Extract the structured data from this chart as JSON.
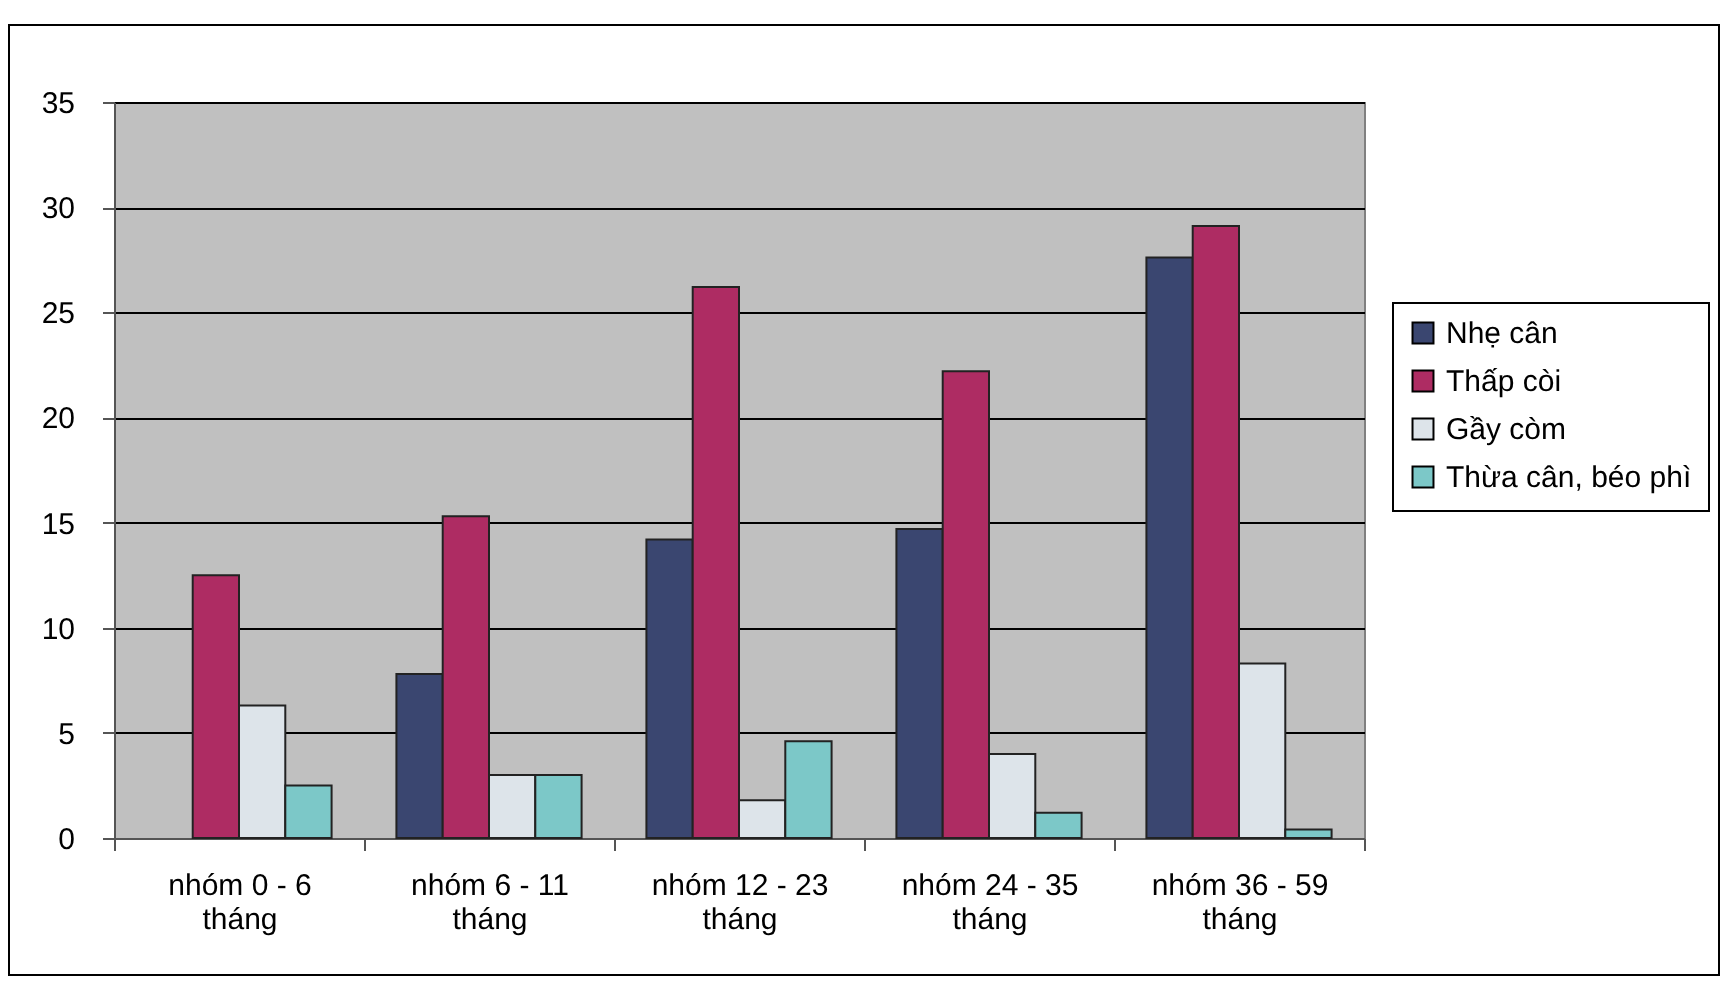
{
  "chart_data": {
    "type": "bar",
    "categories": [
      "nhóm 0 - 6 tháng",
      "nhóm 6 - 11 tháng",
      "nhóm 12 - 23 tháng",
      "nhóm 24 - 35 tháng",
      "nhóm 36 - 59 tháng"
    ],
    "series": [
      {
        "name": "Nhẹ cân",
        "color": "#3a4670",
        "values": [
          null,
          7.8,
          14.2,
          14.7,
          27.6
        ]
      },
      {
        "name": "Thấp còi",
        "color": "#ae2c63",
        "values": [
          12.5,
          15.3,
          26.2,
          22.2,
          29.1
        ]
      },
      {
        "name": "Gầy còm",
        "color": "#dde4ea",
        "values": [
          6.3,
          3.0,
          1.8,
          4.0,
          8.3
        ]
      },
      {
        "name": "Thừa cân, béo phì",
        "color": "#7cc8c8",
        "values": [
          2.5,
          3.0,
          4.6,
          1.2,
          0.4
        ]
      }
    ],
    "ylim": [
      0,
      35
    ],
    "yticks": [
      0,
      5,
      10,
      15,
      20,
      25,
      30,
      35
    ],
    "grid": "y",
    "legend": "right"
  }
}
